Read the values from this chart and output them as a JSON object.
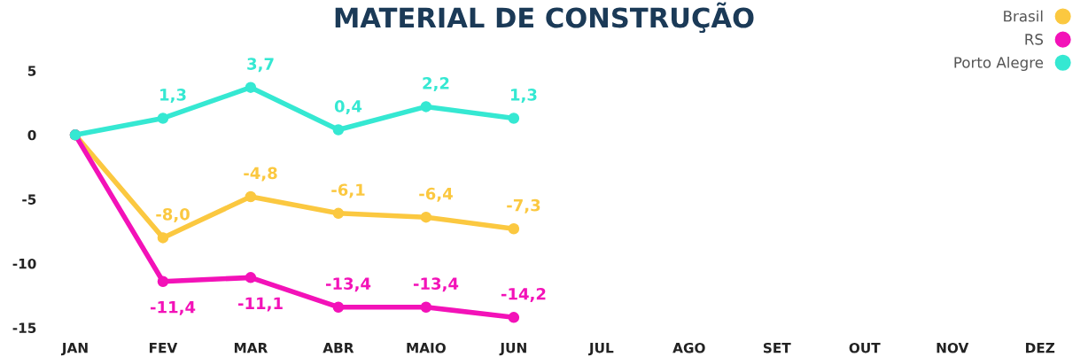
{
  "chart_data": {
    "type": "line",
    "title": "MATERIAL DE CONSTRUÇÃO",
    "categories": [
      "JAN",
      "FEV",
      "MAR",
      "ABR",
      "MAIO",
      "JUN",
      "JUL",
      "AGO",
      "SET",
      "OUT",
      "NOV",
      "DEZ"
    ],
    "series": [
      {
        "name": "Brasil",
        "color": "#fbc840",
        "values": [
          0,
          -8.0,
          -4.8,
          -6.1,
          -6.4,
          -7.3,
          null,
          null,
          null,
          null,
          null,
          null
        ],
        "value_labels": [
          null,
          "-8,0",
          "-4,8",
          "-6,1",
          "-6,4",
          "-7,3",
          null,
          null,
          null,
          null,
          null,
          null
        ]
      },
      {
        "name": "RS",
        "color": "#f312b8",
        "values": [
          0,
          -11.4,
          -11.1,
          -13.4,
          -13.4,
          -14.2,
          null,
          null,
          null,
          null,
          null,
          null
        ],
        "value_labels": [
          null,
          "-11,4",
          "-11,1",
          "-13,4",
          "-13,4",
          "-14,2",
          null,
          null,
          null,
          null,
          null,
          null
        ]
      },
      {
        "name": "Porto Alegre",
        "color": "#35e8d2",
        "values": [
          0,
          1.3,
          3.7,
          0.4,
          2.2,
          1.3,
          null,
          null,
          null,
          null,
          null,
          null
        ],
        "value_labels": [
          null,
          "1,3",
          "3,7",
          "0,4",
          "2,2",
          "1,3",
          null,
          null,
          null,
          null,
          null,
          null
        ]
      }
    ],
    "ylim": [
      -15,
      5
    ],
    "yticks": [
      {
        "value": 5,
        "label": "5"
      },
      {
        "value": 0,
        "label": "0"
      },
      {
        "value": -5,
        "label": "-5"
      },
      {
        "value": -10,
        "label": "-10"
      },
      {
        "value": -15,
        "label": "-15"
      }
    ],
    "grid": false,
    "legend": "top right",
    "marker": "circle",
    "line_style": "solid"
  }
}
